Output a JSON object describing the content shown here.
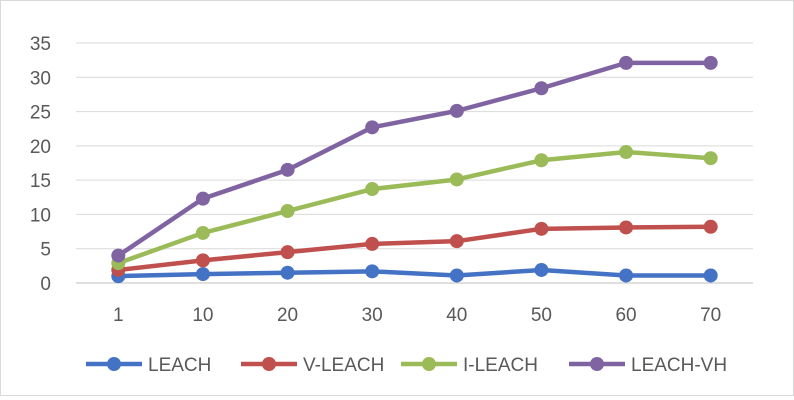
{
  "chart_data": {
    "type": "line",
    "title": "",
    "xlabel": "",
    "ylabel": "",
    "categories": [
      "1",
      "10",
      "20",
      "30",
      "40",
      "50",
      "60",
      "70"
    ],
    "ylim": [
      0,
      35
    ],
    "yticks": [
      "0",
      "5",
      "10",
      "15",
      "20",
      "25",
      "30",
      "35"
    ],
    "grid": true,
    "legend_position": "bottom",
    "series": [
      {
        "name": "LEACH",
        "color": "#4472c4",
        "values": [
          1.0,
          1.3,
          1.5,
          1.7,
          1.1,
          1.9,
          1.1,
          1.1
        ]
      },
      {
        "name": "V-LEACH",
        "color": "#c0504d",
        "values": [
          1.9,
          3.3,
          4.5,
          5.7,
          6.1,
          7.9,
          8.1,
          8.2
        ]
      },
      {
        "name": "I-LEACH",
        "color": "#9bbb59",
        "values": [
          2.9,
          7.3,
          10.5,
          13.7,
          15.1,
          17.9,
          19.1,
          18.2
        ]
      },
      {
        "name": "LEACH-VH",
        "color": "#8064a2",
        "values": [
          4.0,
          12.3,
          16.5,
          22.7,
          25.1,
          28.4,
          32.1,
          32.1
        ]
      }
    ]
  }
}
